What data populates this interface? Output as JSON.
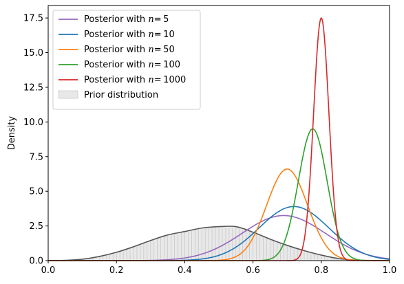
{
  "chart_data": {
    "type": "line",
    "ylabel": "Density",
    "xlabel": "",
    "xlim": [
      0,
      1
    ],
    "ylim": [
      0,
      18.4
    ],
    "xticks": [
      0.0,
      0.2,
      0.4,
      0.6,
      0.8,
      1.0
    ],
    "xtick_labels": [
      "0.0",
      "0.2",
      "0.4",
      "0.6",
      "0.8",
      "1.0"
    ],
    "yticks": [
      0.0,
      2.5,
      5.0,
      7.5,
      10.0,
      12.5,
      15.0,
      17.5
    ],
    "ytick_labels": [
      "0.0",
      "2.5",
      "5.0",
      "7.5",
      "10.0",
      "12.5",
      "15.0",
      "17.5"
    ],
    "legend_position": "top-left",
    "legend": [
      {
        "name": "Posterior with",
        "math": "n = 5",
        "color": "#9467bd",
        "kind": "line"
      },
      {
        "name": "Posterior with",
        "math": "n = 10",
        "color": "#1f77b4",
        "kind": "line"
      },
      {
        "name": "Posterior with",
        "math": "n = 50",
        "color": "#ff7f0e",
        "kind": "line"
      },
      {
        "name": "Posterior with",
        "math": "n = 100",
        "color": "#2ca02c",
        "kind": "line"
      },
      {
        "name": "Posterior with",
        "math": "n = 1000",
        "color": "#d62728",
        "kind": "line"
      },
      {
        "name": "Prior distribution",
        "math": "",
        "color": "#e8e8e8",
        "kind": "patch"
      }
    ],
    "prior": {
      "line_color": "#555555",
      "fill_color": "#e8e8e8",
      "x": [
        0.0,
        0.05,
        0.1,
        0.15,
        0.2,
        0.25,
        0.3,
        0.35,
        0.4,
        0.45,
        0.5,
        0.55,
        0.6,
        0.65,
        0.7,
        0.75,
        0.8,
        0.85,
        0.9,
        0.95,
        1.0
      ],
      "y": [
        0.0,
        0.02,
        0.1,
        0.3,
        0.6,
        1.0,
        1.45,
        1.85,
        2.1,
        2.35,
        2.45,
        2.45,
        2.05,
        1.55,
        1.1,
        0.72,
        0.4,
        0.15,
        0.04,
        0.01,
        0.0
      ]
    },
    "series": [
      {
        "name": "Posterior with n = 5",
        "color": "#9467bd",
        "mean": 0.69,
        "sd": 0.122,
        "peak": 3.25
      },
      {
        "name": "Posterior with n = 10",
        "color": "#1f77b4",
        "mean": 0.72,
        "sd": 0.102,
        "peak": 3.9
      },
      {
        "name": "Posterior with n = 50",
        "color": "#ff7f0e",
        "mean": 0.7,
        "sd": 0.06,
        "peak": 6.6
      },
      {
        "name": "Posterior with n = 100",
        "color": "#2ca02c",
        "mean": 0.775,
        "sd": 0.042,
        "peak": 9.5
      },
      {
        "name": "Posterior with n = 1000",
        "color": "#d62728",
        "mean": 0.8,
        "sd": 0.0225,
        "peak": 17.5
      }
    ]
  }
}
